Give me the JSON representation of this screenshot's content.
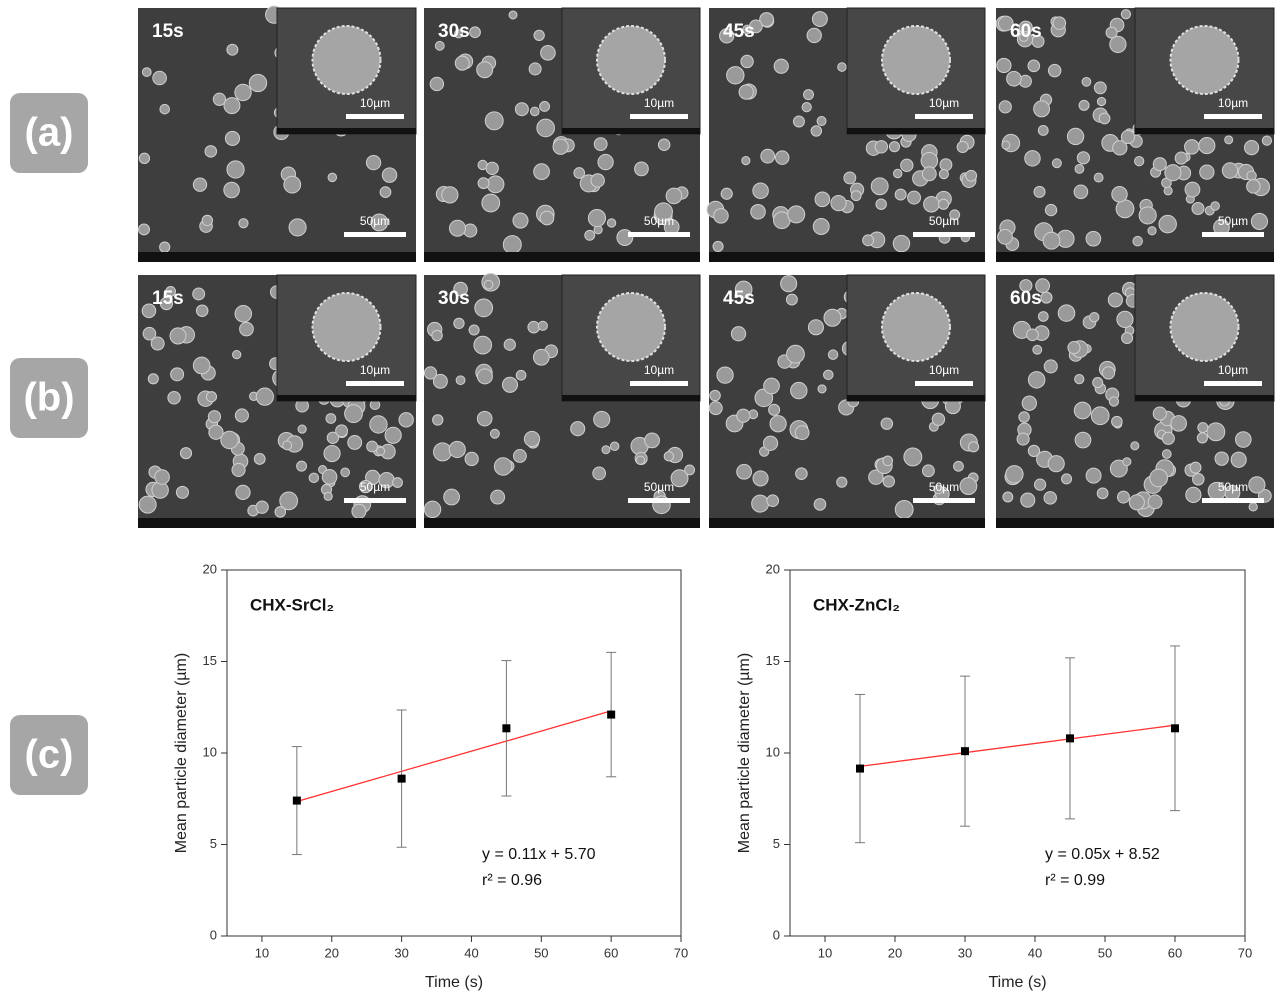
{
  "panel_labels": [
    "(a)",
    "(b)",
    "(c)"
  ],
  "sem_rows": [
    {
      "images": [
        {
          "time": "15s",
          "inset_scale": "10µm",
          "scale": "50µm"
        },
        {
          "time": "30s",
          "inset_scale": "10µm",
          "scale": "50µm"
        },
        {
          "time": "45s",
          "inset_scale": "10µm",
          "scale": "50µm"
        },
        {
          "time": "60s",
          "inset_scale": "10µm",
          "scale": "50µm"
        }
      ]
    },
    {
      "images": [
        {
          "time": "15s",
          "inset_scale": "10µm",
          "scale": "50µm"
        },
        {
          "time": "30s",
          "inset_scale": "10µm",
          "scale": "50µm"
        },
        {
          "time": "45s",
          "inset_scale": "10µm",
          "scale": "50µm"
        },
        {
          "time": "60s",
          "inset_scale": "10µm",
          "scale": "50µm"
        }
      ]
    }
  ],
  "chart_data": [
    {
      "type": "scatter",
      "title": "CHX-SrCl₂",
      "x_label": "Time (s)",
      "y_label": "Mean particle diameter (µm)",
      "x": [
        15,
        30,
        45,
        60
      ],
      "values": [
        7.4,
        8.6,
        11.35,
        12.1
      ],
      "errors": [
        2.95,
        3.75,
        3.7,
        3.4
      ],
      "color": "#000000",
      "fit": {
        "x": [
          15,
          60
        ],
        "values": [
          7.35,
          12.3
        ],
        "color": "#ff3333"
      },
      "annotations": [
        "y = 0.11x + 5.70",
        "r² = 0.96"
      ],
      "xlim": [
        5,
        70
      ],
      "xticks": [
        10,
        20,
        30,
        40,
        50,
        60,
        70
      ],
      "ylim": [
        0,
        20
      ],
      "yticks": [
        0,
        5,
        10,
        15,
        20
      ]
    },
    {
      "type": "scatter",
      "title": "CHX-ZnCl₂",
      "x_label": "Time (s)",
      "y_label": "Mean particle diameter (µm)",
      "x": [
        15,
        30,
        45,
        60
      ],
      "values": [
        9.15,
        10.1,
        10.8,
        11.35
      ],
      "errors": [
        4.05,
        4.1,
        4.4,
        4.5
      ],
      "color": "#000000",
      "fit": {
        "x": [
          15,
          60
        ],
        "values": [
          9.27,
          11.52
        ],
        "color": "#ff3333"
      },
      "annotations": [
        "y = 0.05x + 8.52",
        "r² = 0.99"
      ],
      "xlim": [
        5,
        70
      ],
      "xticks": [
        10,
        20,
        30,
        40,
        50,
        60,
        70
      ],
      "ylim": [
        0,
        20
      ],
      "yticks": [
        0,
        5,
        10,
        15,
        20
      ]
    }
  ]
}
